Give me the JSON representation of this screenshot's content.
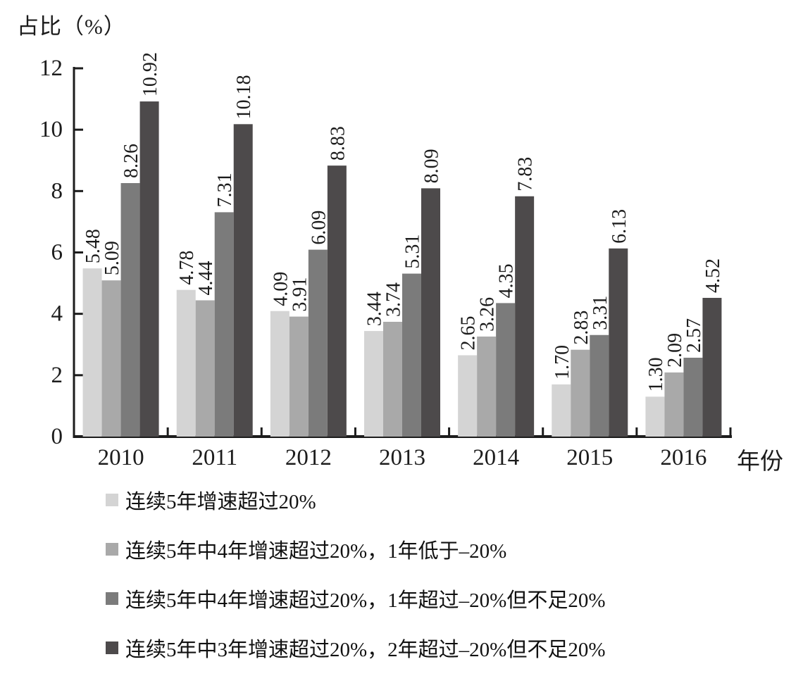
{
  "chart_data": {
    "type": "bar",
    "y_axis_title": "占比（%）",
    "x_axis_title": "年份",
    "categories": [
      "2010",
      "2011",
      "2012",
      "2013",
      "2014",
      "2015",
      "2016"
    ],
    "series": [
      {
        "name": "连续5年增速超过20%",
        "color": "#d4d4d4",
        "values": [
          5.48,
          4.78,
          4.09,
          3.44,
          2.65,
          1.7,
          1.3
        ]
      },
      {
        "name": "连续5年中4年增速超过20%，1年低于–20%",
        "color": "#a9a9a9",
        "values": [
          5.09,
          4.44,
          3.91,
          3.74,
          3.26,
          2.83,
          2.09
        ]
      },
      {
        "name": "连续5年中4年增速超过20%，1年超过–20%但不足20%",
        "color": "#7b7b7b",
        "values": [
          8.26,
          7.31,
          6.09,
          5.31,
          4.35,
          3.31,
          2.57
        ]
      },
      {
        "name": "连续5年中3年增速超过20%，2年超过–20%但不足20%",
        "color": "#4d4a4b",
        "values": [
          10.92,
          10.18,
          8.83,
          8.09,
          7.83,
          6.13,
          4.52
        ]
      }
    ],
    "ylim": [
      0,
      12
    ],
    "yticks": [
      0,
      2,
      4,
      6,
      8,
      10,
      12
    ],
    "value_label_decimals": 2,
    "value_labels_rotated": true,
    "grid": false,
    "legend_position": "bottom",
    "axis_color": "#1c1c1c"
  }
}
